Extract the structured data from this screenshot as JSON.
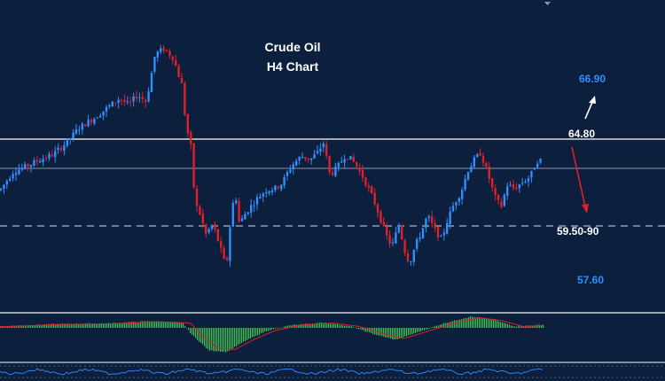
{
  "chart_data": {
    "type": "candlestick",
    "title_line1": "Crude Oil",
    "title_line2": "H4 Chart",
    "colors": {
      "background": "#0c1f3c",
      "bull": "#2f8fff",
      "bear": "#e0202a",
      "level_line": "#ffffff",
      "macd_hist": "#3fbf4f",
      "signal_line": "#e0202a"
    },
    "levels": [
      {
        "label": "66.90",
        "color_key": "blue",
        "price": 66.9
      },
      {
        "label": "64.80",
        "color_key": "white",
        "price": 64.8,
        "line": "solid"
      },
      {
        "label": "59.50-90",
        "color_key": "white",
        "price": 59.7,
        "line": "dashed"
      },
      {
        "label": "57.60",
        "color_key": "blue",
        "price": 57.6
      }
    ],
    "close_path": [
      [
        0,
        61.8
      ],
      [
        15,
        62.9
      ],
      [
        30,
        63.2
      ],
      [
        45,
        63.6
      ],
      [
        60,
        63.9
      ],
      [
        75,
        64.6
      ],
      [
        90,
        65.5
      ],
      [
        105,
        66.0
      ],
      [
        120,
        66.6
      ],
      [
        135,
        67.2
      ],
      [
        145,
        66.8
      ],
      [
        155,
        67.4
      ],
      [
        165,
        67.0
      ],
      [
        175,
        69.8
      ],
      [
        185,
        70.1
      ],
      [
        195,
        69.6
      ],
      [
        205,
        68.0
      ],
      [
        210,
        65.5
      ],
      [
        215,
        64.5
      ],
      [
        220,
        61.0
      ],
      [
        225,
        60.5
      ],
      [
        232,
        59.2
      ],
      [
        240,
        59.8
      ],
      [
        248,
        58.5
      ],
      [
        255,
        57.2
      ],
      [
        260,
        60.0
      ],
      [
        265,
        61.8
      ],
      [
        270,
        59.8
      ],
      [
        275,
        60.3
      ],
      [
        282,
        60.8
      ],
      [
        290,
        61.3
      ],
      [
        300,
        61.8
      ],
      [
        310,
        61.9
      ],
      [
        318,
        62.2
      ],
      [
        325,
        62.9
      ],
      [
        330,
        63.3
      ],
      [
        340,
        63.8
      ],
      [
        350,
        63.6
      ],
      [
        358,
        64.0
      ],
      [
        365,
        64.6
      ],
      [
        372,
        62.7
      ],
      [
        380,
        63.1
      ],
      [
        390,
        63.9
      ],
      [
        400,
        63.4
      ],
      [
        410,
        62.5
      ],
      [
        420,
        61.4
      ],
      [
        428,
        60.3
      ],
      [
        435,
        59.2
      ],
      [
        442,
        58.5
      ],
      [
        450,
        59.8
      ],
      [
        456,
        58.3
      ],
      [
        462,
        57.5
      ],
      [
        468,
        58.5
      ],
      [
        475,
        59.3
      ],
      [
        482,
        60.3
      ],
      [
        490,
        59.5
      ],
      [
        498,
        58.9
      ],
      [
        505,
        60.1
      ],
      [
        512,
        61.0
      ],
      [
        520,
        61.7
      ],
      [
        528,
        63.0
      ],
      [
        535,
        63.6
      ],
      [
        542,
        64.0
      ],
      [
        550,
        62.8
      ],
      [
        558,
        61.4
      ],
      [
        565,
        60.8
      ],
      [
        572,
        62.1
      ],
      [
        580,
        61.9
      ],
      [
        590,
        62.3
      ],
      [
        598,
        62.6
      ],
      [
        605,
        63.5
      ],
      [
        612,
        63.6
      ]
    ],
    "macd_hist": [
      [
        0,
        0.1
      ],
      [
        60,
        0.25
      ],
      [
        120,
        0.3
      ],
      [
        170,
        0.45
      ],
      [
        205,
        0.35
      ],
      [
        215,
        -0.4
      ],
      [
        235,
        -1.5
      ],
      [
        255,
        -1.6
      ],
      [
        275,
        -0.9
      ],
      [
        300,
        -0.2
      ],
      [
        330,
        0.2
      ],
      [
        365,
        0.35
      ],
      [
        395,
        0.1
      ],
      [
        420,
        -0.4
      ],
      [
        445,
        -0.8
      ],
      [
        470,
        -0.3
      ],
      [
        500,
        0.3
      ],
      [
        530,
        0.75
      ],
      [
        555,
        0.55
      ],
      [
        580,
        0.1
      ],
      [
        612,
        0.2
      ]
    ]
  }
}
